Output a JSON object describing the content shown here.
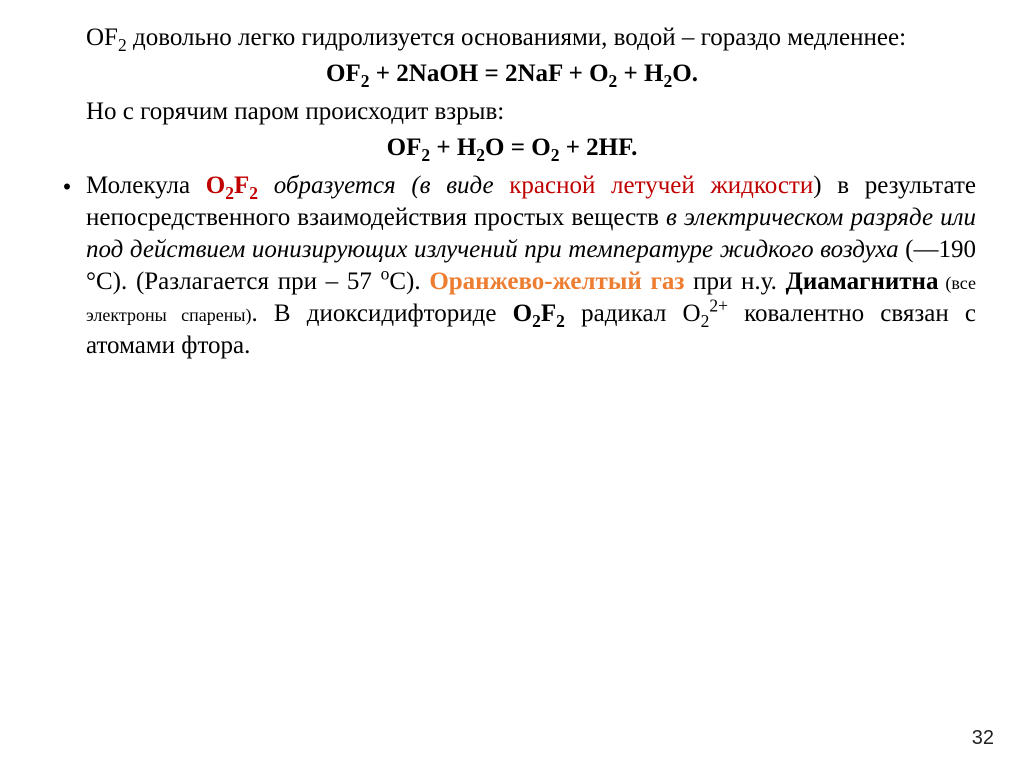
{
  "p1_a": "OF",
  "p1_b": " довольно легко гидролизуется  основаниями, водой  –  гораздо медленнее:",
  "eq1_a": "OF",
  "eq1_b": " + 2NaOH = 2NaF + O",
  "eq1_c": " + H",
  "eq1_d": "O.",
  "p2": "Но с горячим паром происходит взрыв:",
  "eq2_a": "OF",
  "eq2_b": " + H",
  "eq2_c": "O = O",
  "eq2_d": " + 2HF.",
  "bullet": "•",
  "p3_a": "Молекула ",
  "p3_b": "O",
  "p3_c": "F",
  "p3_d": " образуется (в виде ",
  "p3_e": "красной летучей жидкости",
  "p3_f": ") в результате непосредственного взаимодействия простых веществ ",
  "p3_g": "в электрическом разряде или под действием ионизирующих излучений при температуре жидкого воздуха",
  "p3_h": " (—190 °С). (Разлагается при – 57 ",
  "p3_i": "о",
  "p3_j": "С). ",
  "p3_k": "Оранжево-желтый газ",
  "p3_l": " при н.у. ",
  "p3_m": "Диамагнитна",
  "p3_n": " (все электроны спарены)",
  "p3_o": ". В диоксидифториде ",
  "p3_p": "O",
  "p3_q": "F",
  "p3_r": " радикал O",
  "p3_s": " ковалентно связан с атомами фтора.",
  "sub2": "2",
  "sup2plus": "2+",
  "pagenum": "32"
}
